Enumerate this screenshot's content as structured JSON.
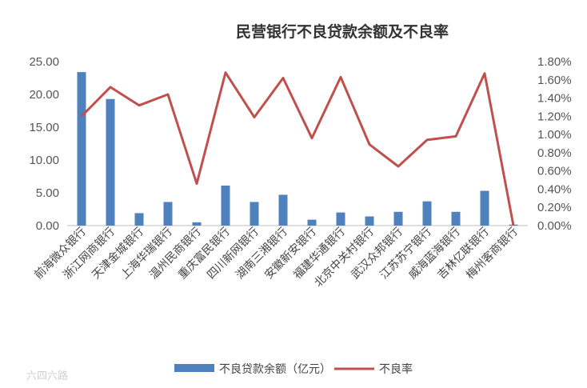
{
  "chart_data": {
    "type": "bar",
    "title": "民营银行不良贷款余额及不良率",
    "categories": [
      "前海微众银行",
      "浙江网商银行",
      "天津金城银行",
      "上海华瑞银行",
      "温州民商银行",
      "重庆富民银行",
      "四川新网银行",
      "湖南三湘银行",
      "安徽新安银行",
      "福建华通银行",
      "北京中关村银行",
      "武汉众邦银行",
      "江苏苏宁银行",
      "威海蓝海银行",
      "吉林亿联银行",
      "梅州客商银行"
    ],
    "series": [
      {
        "name": "不良贷款余额（亿元）",
        "type": "bar",
        "axis": "left",
        "color": "#4f81bd",
        "values": [
          23.4,
          19.3,
          1.9,
          3.6,
          0.5,
          6.1,
          3.6,
          4.7,
          0.9,
          2.0,
          1.4,
          2.1,
          3.7,
          2.1,
          5.3,
          0.15
        ]
      },
      {
        "name": "不良率",
        "type": "line",
        "axis": "right",
        "color": "#c0504d",
        "values": [
          1.2,
          1.52,
          1.32,
          1.44,
          0.46,
          1.68,
          1.19,
          1.62,
          0.96,
          1.63,
          0.89,
          0.65,
          0.94,
          0.98,
          1.67,
          0.0
        ]
      }
    ],
    "y_left": {
      "ylim": [
        0,
        25
      ],
      "ticks": [
        "0.00",
        "5.00",
        "10.00",
        "15.00",
        "20.00",
        "25.00"
      ]
    },
    "y_right": {
      "ylim": [
        0,
        1.8
      ],
      "ticks": [
        "0.00%",
        "0.20%",
        "0.40%",
        "0.60%",
        "0.80%",
        "1.00%",
        "1.20%",
        "1.40%",
        "1.60%",
        "1.80%"
      ]
    },
    "grid": false,
    "legend": "bottom"
  },
  "watermark": "六四六路"
}
